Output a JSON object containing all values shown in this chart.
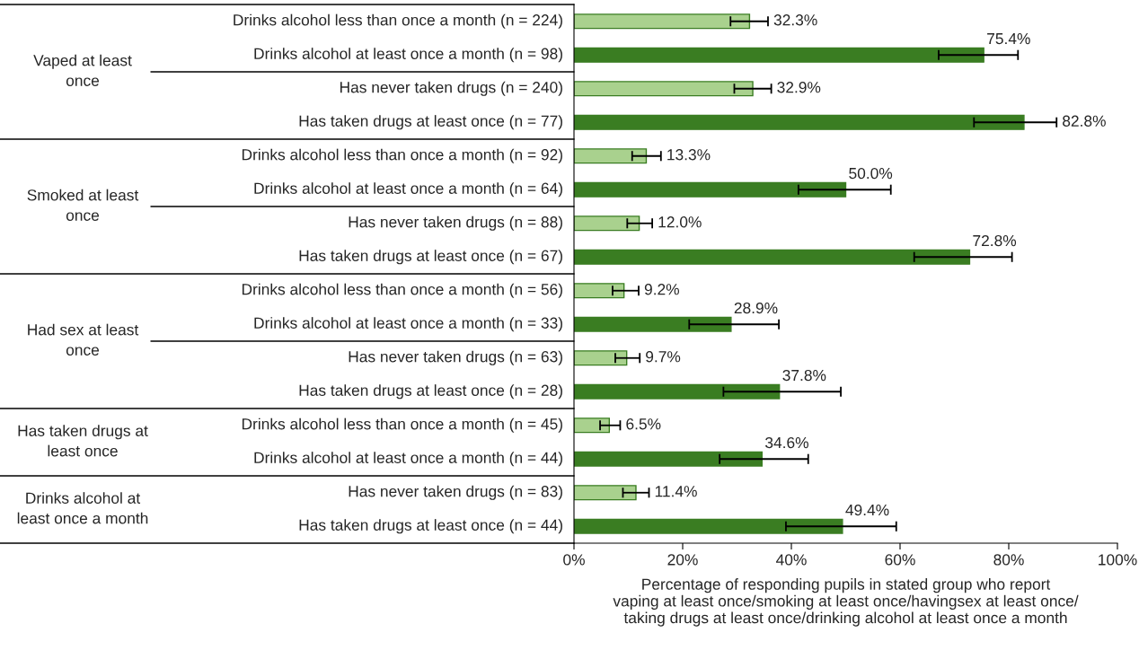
{
  "chart_data": {
    "type": "bar",
    "orientation": "horizontal",
    "categories": [
      "Drinks alcohol less than once a month (n = 224)",
      "Drinks alcohol at least once a month (n = 98)",
      "Has never taken drugs (n = 240)",
      "Has taken drugs at least once (n = 77)",
      "Drinks alcohol less than once a month (n = 92)",
      "Drinks alcohol at least once a month (n = 64)",
      "Has never taken drugs (n = 88)",
      "Has taken drugs at least once (n = 67)",
      "Drinks alcohol less than once a month (n = 56)",
      "Drinks alcohol at least once a month (n = 33)",
      "Has never taken drugs (n = 63)",
      "Has taken drugs at least once (n = 28)",
      "Drinks alcohol less than once a month (n = 45)",
      "Drinks alcohol at least once a month (n = 44)",
      "Has never taken drugs (n = 83)",
      "Has taken drugs at least once (n = 44)"
    ],
    "values": [
      32.3,
      75.4,
      32.9,
      82.8,
      13.3,
      50.0,
      12.0,
      72.8,
      9.2,
      28.9,
      9.7,
      37.8,
      6.5,
      34.6,
      11.4,
      49.4
    ],
    "colors": [
      "#a9d18e",
      "#3a7d22",
      "#a9d18e",
      "#3a7d22",
      "#a9d18e",
      "#3a7d22",
      "#a9d18e",
      "#3a7d22",
      "#a9d18e",
      "#3a7d22",
      "#a9d18e",
      "#3a7d22",
      "#a9d18e",
      "#3a7d22",
      "#a9d18e",
      "#3a7d22"
    ],
    "errors": [
      [
        28.8,
        35.7
      ],
      [
        67.1,
        81.7
      ],
      [
        29.5,
        36.3
      ],
      [
        73.6,
        88.8
      ],
      [
        10.7,
        16.0
      ],
      [
        41.3,
        58.3
      ],
      [
        9.8,
        14.4
      ],
      [
        62.6,
        80.6
      ],
      [
        7.1,
        11.9
      ],
      [
        21.2,
        37.7
      ],
      [
        7.6,
        12.1
      ],
      [
        27.5,
        49.1
      ],
      [
        4.8,
        8.5
      ],
      [
        26.8,
        43.1
      ],
      [
        9.0,
        13.8
      ],
      [
        39.0,
        59.3
      ]
    ],
    "value_labels": [
      "32.3%",
      "75.4%",
      "32.9%",
      "82.8%",
      "13.3%",
      "50.0%",
      "12.0%",
      "72.8%",
      "9.2%",
      "28.9%",
      "9.7%",
      "37.8%",
      "6.5%",
      "34.6%",
      "11.4%",
      "49.4%"
    ],
    "xlim": [
      0,
      100
    ],
    "xticks": [
      {
        "value": 0,
        "label": "0%"
      },
      {
        "value": 20,
        "label": "20%"
      },
      {
        "value": 40,
        "label": "40%"
      },
      {
        "value": 60,
        "label": "60%"
      },
      {
        "value": 80,
        "label": "80%"
      },
      {
        "value": 100,
        "label": "100%"
      }
    ],
    "xlabel": "Percentage of responding pupils in stated group who report\nvaping at least once/smoking at least once/havingsex at least once/\ntaking drugs at least once/drinking alcohol at least once a month",
    "annotations": [
      "Vaped at least\nonce",
      "Smoked at least\nonce",
      "Had sex at least\nonce",
      "Has taken drugs at\nleast once",
      "Drinks alcohol at\nleast once a month"
    ],
    "grid": false,
    "legend": false
  }
}
